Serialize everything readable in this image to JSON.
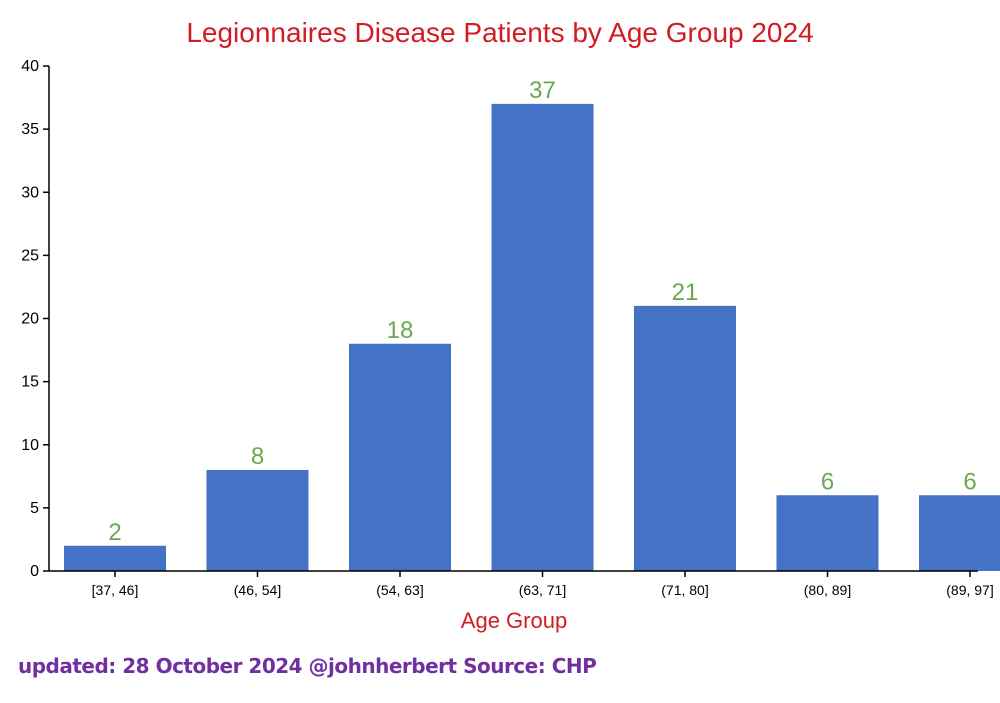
{
  "chart_data": {
    "type": "bar",
    "title": "Legionnaires Disease Patients by Age Group 2024",
    "xlabel": "Age Group",
    "ylabel": "",
    "categories": [
      "[37, 46]",
      "(46, 54]",
      "(54, 63]",
      "(63, 71]",
      "(71, 80]",
      "(80, 89]",
      "(89, 97]"
    ],
    "values": [
      2,
      8,
      18,
      37,
      21,
      6,
      6
    ],
    "ylim": [
      0,
      40
    ],
    "yticks": [
      0,
      5,
      10,
      15,
      20,
      25,
      30,
      35,
      40
    ],
    "grid": false,
    "colors": {
      "bar": "#4472c4",
      "data_label": "#6aa84f",
      "title": "#d21c24",
      "axis": "#000000"
    }
  },
  "footer": {
    "text": "updated: 28 October 2024 @johnherbert  Source: CHP"
  }
}
